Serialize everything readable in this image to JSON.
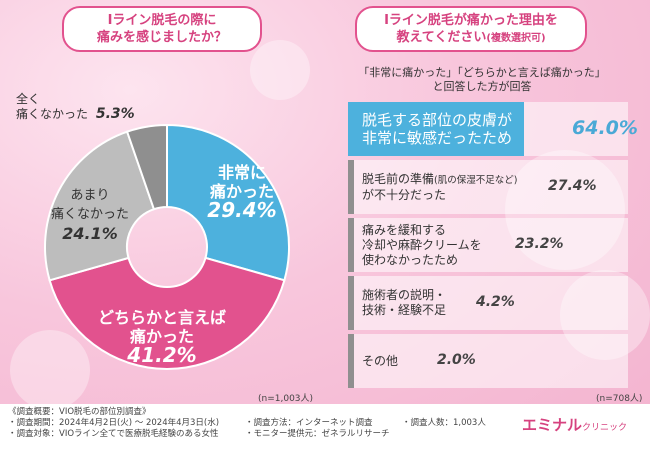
{
  "left": {
    "title_line1": "Iライン脱毛の際に",
    "title_line2": "痛みを感じましたか？",
    "n_note": "(n=1,003人)"
  },
  "right": {
    "title_line1": "Iライン脱毛が痛かった理由を",
    "title_line2": "教えてください",
    "title_small": "(複数選択可)",
    "subhead_line1": "「非常に痛かった」「どちらかと言えば痛かった」",
    "subhead_line2": "と回答した方が回答",
    "n_note": "(n=708人)"
  },
  "chart_data": [
    {
      "type": "pie",
      "style": "donut",
      "title": "Iライン脱毛の際に痛みを感じましたか？",
      "categories": [
        "非常に痛かった",
        "どちらかと言えば痛かった",
        "あまり痛くなかった",
        "全く痛くなかった"
      ],
      "values": [
        29.4,
        41.2,
        24.1,
        5.3
      ],
      "colors": [
        "#4db1dd",
        "#e2528e",
        "#bdbdbd",
        "#8f8f8f"
      ],
      "unit": "%",
      "n": "n=1,003人"
    },
    {
      "type": "bar",
      "orientation": "horizontal",
      "title": "Iライン脱毛が痛かった理由を教えてください(複数選択可)",
      "categories": [
        "脱毛する部位の皮膚が非常に敏感だったため",
        "脱毛前の準備(肌の保湿不足など)が不十分だった",
        "痛みを緩和する冷却や麻酔クリームを使わなかったため",
        "施術者の説明・技術・経験不足",
        "その他"
      ],
      "values": [
        64.0,
        27.4,
        23.2,
        4.2,
        2.0
      ],
      "unit": "%",
      "xlim": [
        0,
        100
      ],
      "highlight_color": "#4db1dd",
      "bar_color": "#8f8f8f",
      "n": "n=708人"
    }
  ],
  "pie_labels": [
    {
      "line1": "非常に",
      "line2": "痛かった",
      "pct": "29.4%"
    },
    {
      "line1": "どちらかと言えば",
      "line2": "痛かった",
      "pct": "41.2%"
    },
    {
      "line1": "あまり",
      "line2": "痛くなかった",
      "pct": "24.1%"
    },
    {
      "line1": "全く",
      "line2": "痛くなかった",
      "pct": "5.3%"
    }
  ],
  "bar_labels": [
    {
      "line1": "脱毛する部位の皮膚が",
      "line2": "非常に敏感だったため",
      "small": "",
      "line3": "",
      "pct": "64.0%"
    },
    {
      "line1": "脱毛前の準備",
      "small": "(肌の保湿不足など)",
      "line2": "が不十分だった",
      "line3": "",
      "pct": "27.4%"
    },
    {
      "line1": "痛みを緩和する",
      "line2": "冷却や麻酔クリームを",
      "line3": "使わなかったため",
      "small": "",
      "pct": "23.2%"
    },
    {
      "line1": "施術者の説明・",
      "line2": "技術・経験不足",
      "line3": "",
      "small": "",
      "pct": "4.2%"
    },
    {
      "line1": "その他",
      "line2": "",
      "line3": "",
      "small": "",
      "pct": "2.0%"
    }
  ],
  "footer": {
    "overview": "《調査概要：VIO脱毛の部位別調査》",
    "period": "・調査期間：2024年4月2日(火) ～ 2024年4月3日(水)",
    "target": "・調査対象：VIOライン全てで医療脱毛経験のある女性",
    "method": "・調査方法：インターネット調査",
    "provider": "・モニター提供元：ゼネラルリサーチ",
    "count": "・調査人数：1,003人",
    "logo_main": "エミナル",
    "logo_sub": "クリニック"
  }
}
